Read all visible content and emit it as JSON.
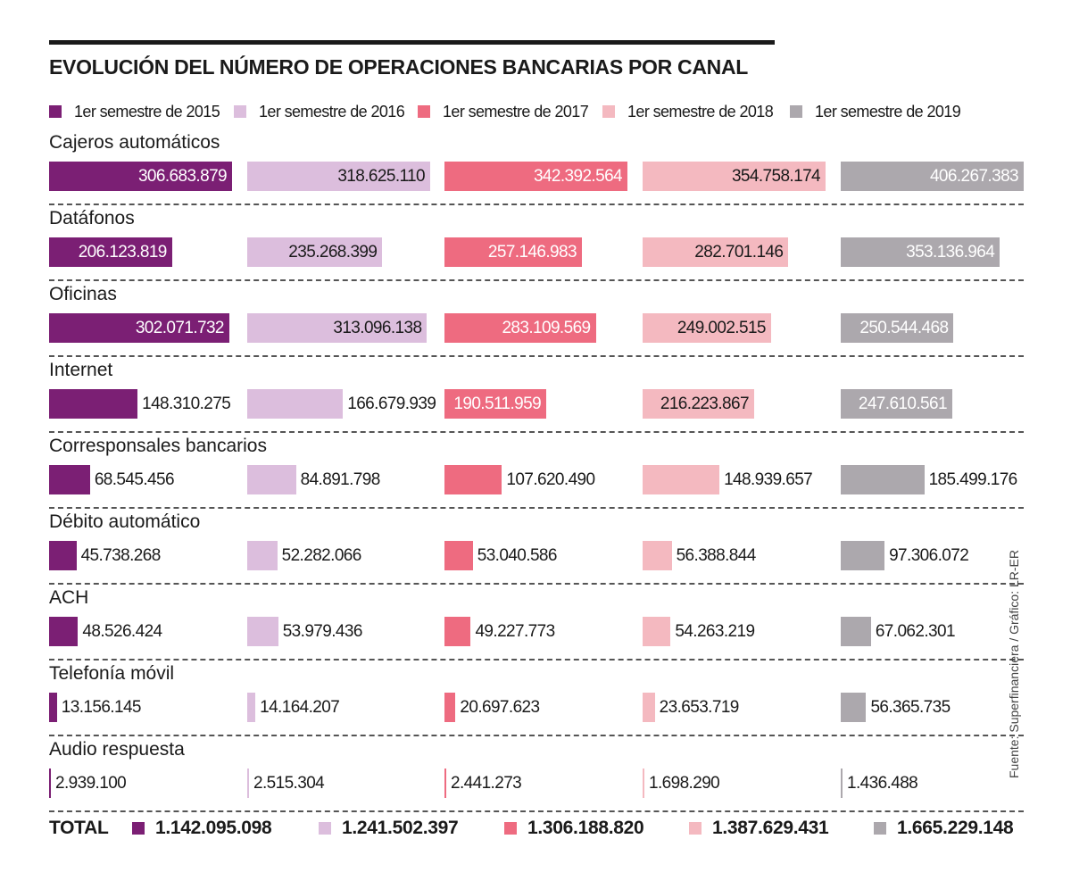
{
  "chart_data": {
    "type": "bar",
    "title": "EVOLUCIÓN DEL NÚMERO DE OPERACIONES BANCARIAS POR CANAL",
    "orientation": "horizontal",
    "scale": "each series scaled to its own maximum",
    "legend_position": "top",
    "grid": false,
    "categories": [
      "Cajeros automáticos",
      "Datáfonos",
      "Oficinas",
      "Internet",
      "Corresponsales bancarios",
      "Débito automático",
      "ACH",
      "Telefonía móvil",
      "Audio respuesta"
    ],
    "series": [
      {
        "name": "1er semestre de 2015",
        "color": "#7b1f74",
        "label_inside_color": "#ffffff",
        "values": [
          306683879,
          206123819,
          302071732,
          148310275,
          68545456,
          45738268,
          48526424,
          13156145,
          2939100
        ],
        "labels": [
          "306.683.879",
          "206.123.819",
          "302.071.732",
          "148.310.275",
          "68.545.456",
          "45.738.268",
          "48.526.424",
          "13.156.145",
          "2.939.100"
        ],
        "total": "1.142.095.098"
      },
      {
        "name": "1er semestre de 2016",
        "color": "#dcbedd",
        "label_inside_color": "#1a1a1a",
        "values": [
          318625110,
          235268399,
          313096138,
          166679939,
          84891798,
          52282066,
          53979436,
          14164207,
          2515304
        ],
        "labels": [
          "318.625.110",
          "235.268.399",
          "313.096.138",
          "166.679.939",
          "84.891.798",
          "52.282.066",
          "53.979.436",
          "14.164.207",
          "2.515.304"
        ],
        "total": "1.241.502.397"
      },
      {
        "name": "1er semestre de 2017",
        "color": "#ee6b80",
        "label_inside_color": "#ffffff",
        "values": [
          342392564,
          257146983,
          283109569,
          190511959,
          107620490,
          53040586,
          49227773,
          20697623,
          2441273
        ],
        "labels": [
          "342.392.564",
          "257.146.983",
          "283.109.569",
          "190.511.959",
          "107.620.490",
          "53.040.586",
          "49.227.773",
          "20.697.623",
          "2.441.273"
        ],
        "total": "1.306.188.820"
      },
      {
        "name": "1er semestre de 2018",
        "color": "#f4b9c0",
        "label_inside_color": "#1a1a1a",
        "values": [
          354758174,
          282701146,
          249002515,
          216223867,
          148939657,
          56388844,
          54263219,
          23653719,
          1698290
        ],
        "labels": [
          "354.758.174",
          "282.701.146",
          "249.002.515",
          "216.223.867",
          "148.939.657",
          "56.388.844",
          "54.263.219",
          "23.653.719",
          "1.698.290"
        ],
        "total": "1.387.629.431"
      },
      {
        "name": "1er semestre de 2019",
        "color": "#aca8ad",
        "label_inside_color": "#ffffff",
        "values": [
          406267383,
          353136964,
          250544468,
          247610561,
          185499176,
          97306072,
          67062301,
          56365735,
          1436488
        ],
        "labels": [
          "406.267.383",
          "353.136.964",
          "250.544.468",
          "247.610.561",
          "185.499.176",
          "97.306.072",
          "67.062.301",
          "56.365.735",
          "1.436.488"
        ],
        "total": "1.665.229.148"
      }
    ],
    "total_label": "TOTAL",
    "source": "Fuente: Superfinanciera / Gráfico: LR-ER"
  }
}
